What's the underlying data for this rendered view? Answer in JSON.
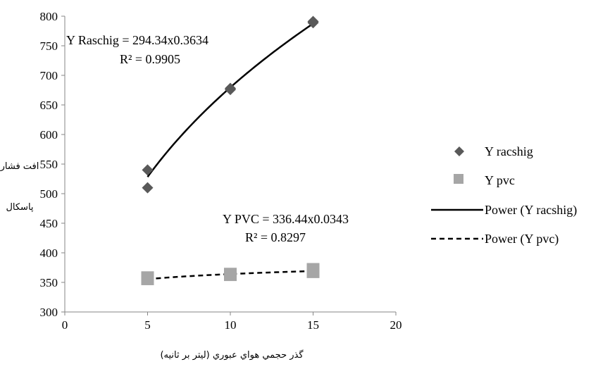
{
  "chart_data": {
    "type": "scatter",
    "xlabel": "گذر حجمي هواي عبوري (ليتر بر ثانيه)",
    "ylabel_line1": "افت فشار",
    "ylabel_line2": "پاسکال",
    "xlim": [
      0,
      20
    ],
    "ylim": [
      300,
      800
    ],
    "x_ticks": [
      "0",
      "5",
      "10",
      "15",
      "20"
    ],
    "y_ticks": [
      "300",
      "350",
      "400",
      "450",
      "500",
      "550",
      "600",
      "650",
      "700",
      "750",
      "800"
    ],
    "grid": false,
    "legend_position": "right",
    "series": [
      {
        "name": "Y racshig",
        "marker": "diamond",
        "color": "#595959",
        "points": [
          [
            5,
            540
          ],
          [
            5,
            510
          ],
          [
            10,
            678
          ],
          [
            10,
            676
          ],
          [
            15,
            791
          ],
          [
            15,
            789
          ]
        ]
      },
      {
        "name": "Y pvc",
        "marker": "square",
        "color": "#a6a6a6",
        "points": [
          [
            5,
            356
          ],
          [
            5,
            358
          ],
          [
            10,
            363
          ],
          [
            10,
            364
          ],
          [
            15,
            368
          ],
          [
            15,
            372
          ]
        ]
      }
    ],
    "trendlines": [
      {
        "name": "Power (Y racshig)",
        "style": "solid",
        "coef": 294.34,
        "exp": 0.3634,
        "x_range": [
          5,
          15
        ],
        "equation": "Y Raschig = 294.34x0.3634",
        "r2": "R² = 0.9905"
      },
      {
        "name": "Power (Y pvc)",
        "style": "dashed",
        "coef": 336.44,
        "exp": 0.0343,
        "x_range": [
          5,
          15
        ],
        "equation": "Y PVC = 336.44x0.0343",
        "r2": "R² = 0.8297"
      }
    ]
  }
}
